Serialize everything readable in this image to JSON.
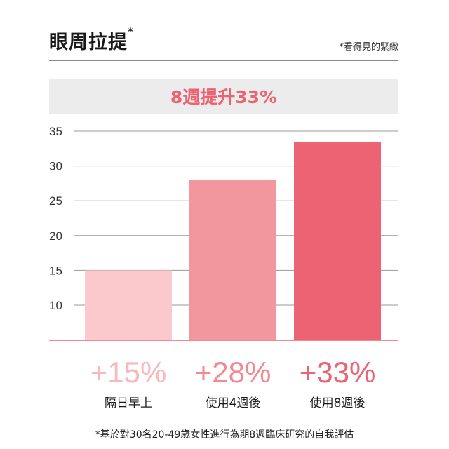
{
  "header": {
    "title": "眼周拉提",
    "title_mark": "*",
    "note": "*看得見的緊緻"
  },
  "banner": {
    "text": "8週提升33%"
  },
  "footnote": "*基於對30名20-49歲女性進行為期8週臨床研究的自我評估",
  "chart_data": {
    "type": "bar",
    "categories": [
      "隔日早上",
      "使用4週後",
      "使用8週後"
    ],
    "values": [
      15,
      28,
      33.4
    ],
    "value_labels": [
      "+15%",
      "+28%",
      "+33%"
    ],
    "colors": [
      "#fbc9cb",
      "#f3979f",
      "#ec6373"
    ],
    "label_colors": [
      "#f7b9bd",
      "#f18892",
      "#ec6373"
    ],
    "yticks": [
      10,
      15,
      20,
      25,
      30,
      35
    ],
    "ylim": [
      5,
      35
    ],
    "grid": true,
    "baseline_color": "#f08a95"
  }
}
